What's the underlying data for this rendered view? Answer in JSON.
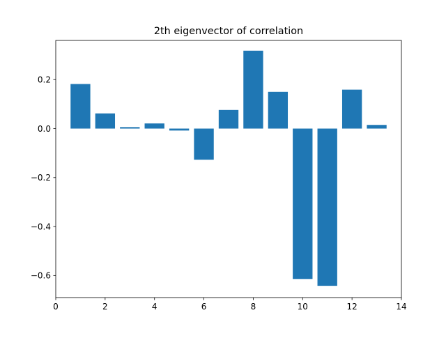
{
  "chart_data": {
    "type": "bar",
    "title": "2th eigenvector of correlation",
    "xlabel": "",
    "ylabel": "",
    "x": [
      1,
      2,
      3,
      4,
      5,
      6,
      7,
      8,
      9,
      10,
      11,
      12,
      13
    ],
    "values": [
      0.182,
      0.062,
      0.006,
      0.021,
      -0.008,
      -0.127,
      0.076,
      0.318,
      0.15,
      -0.614,
      -0.642,
      0.159,
      0.015
    ],
    "xlim": [
      0,
      14
    ],
    "ylim": [
      -0.69,
      0.36
    ],
    "xticks": [
      0,
      2,
      4,
      6,
      8,
      10,
      12,
      14
    ],
    "xtick_labels": [
      "0",
      "2",
      "4",
      "6",
      "8",
      "10",
      "12",
      "14"
    ],
    "yticks": [
      -0.6,
      -0.4,
      -0.2,
      0.0,
      0.2
    ],
    "ytick_labels": [
      "−0.6",
      "−0.4",
      "−0.2",
      "0.0",
      "0.2"
    ],
    "bar_width_units": 0.8,
    "grid": false,
    "legend": "none",
    "bar_color": "#1f77b4"
  }
}
